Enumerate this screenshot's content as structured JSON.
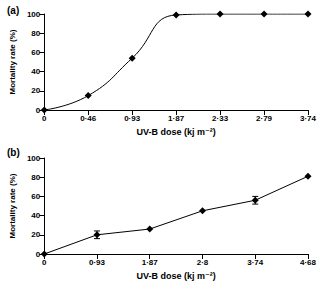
{
  "chart_data": [
    {
      "type": "line",
      "title": "(a)",
      "x_label": "UV-B dose (kj m⁻²)",
      "y_label": "Mortality rate (%)",
      "categories": [
        "0",
        "0·46",
        "0·93",
        "1·87",
        "2·33",
        "2·79",
        "3·74"
      ],
      "values": [
        0,
        15,
        54,
        99,
        100,
        100,
        100
      ],
      "color": "#000000",
      "marker": "diamond",
      "line_style": "smooth",
      "ylim": [
        0,
        100
      ],
      "yticks": [
        0,
        20,
        40,
        60,
        80,
        100
      ],
      "grid": false
    },
    {
      "type": "line",
      "title": "(b)",
      "x_label": "UV-B dose (kj m⁻²)",
      "y_label": "Mortality rate (%)",
      "categories": [
        "0",
        "0·93",
        "1·87",
        "2·8",
        "3·74",
        "4·68"
      ],
      "values": [
        0,
        20,
        26,
        45,
        56,
        81
      ],
      "errors": [
        null,
        4,
        null,
        null,
        4,
        null
      ],
      "color": "#000000",
      "marker": "diamond",
      "line_style": "solid",
      "ylim": [
        0,
        100
      ],
      "yticks": [
        0,
        20,
        40,
        60,
        80,
        100
      ],
      "grid": false
    }
  ]
}
